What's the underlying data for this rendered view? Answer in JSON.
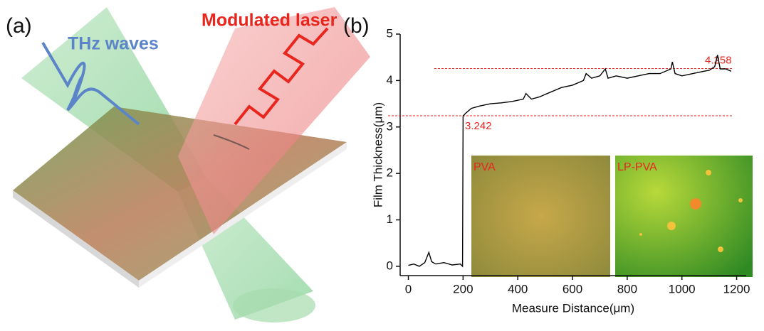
{
  "panel_a": {
    "label": "(a)",
    "thz_label": "THz waves",
    "laser_label": "Modulated laser"
  },
  "chart_data": {
    "type": "line",
    "panel_label": "(b)",
    "x_label": "Measure Distance(μm)",
    "y_label": "Film Thickness(μm)",
    "xlim": [
      -30,
      1235
    ],
    "xticks": [
      0,
      200,
      400,
      600,
      800,
      1000,
      1200
    ],
    "ylim": [
      -0.2,
      5
    ],
    "yticks": [
      0,
      1,
      2,
      3,
      4,
      5
    ],
    "series": [
      {
        "color": "#000000",
        "x": [
          0,
          20,
          40,
          60,
          75,
          85,
          100,
          130,
          160,
          190,
          198,
          200,
          210,
          230,
          260,
          300,
          340,
          380,
          420,
          430,
          450,
          480,
          520,
          560,
          600,
          640,
          650,
          670,
          700,
          720,
          730,
          760,
          800,
          840,
          880,
          920,
          960,
          965,
          975,
          1000,
          1040,
          1080,
          1100,
          1120,
          1130,
          1140,
          1160,
          1180
        ],
        "values": [
          0.02,
          0.05,
          0.0,
          0.08,
          0.3,
          0.1,
          0.05,
          0.08,
          0.03,
          0.05,
          0.0,
          3.24,
          3.3,
          3.4,
          3.45,
          3.5,
          3.52,
          3.55,
          3.6,
          3.72,
          3.6,
          3.65,
          3.75,
          3.85,
          3.9,
          4.0,
          4.15,
          4.05,
          4.1,
          4.25,
          4.05,
          4.1,
          4.05,
          4.1,
          4.15,
          4.15,
          4.25,
          4.4,
          4.15,
          4.1,
          4.15,
          4.2,
          4.22,
          4.3,
          4.55,
          4.25,
          4.25,
          4.2
        ]
      }
    ],
    "reference_lines": [
      {
        "value": 3.242,
        "color": "#e8261e"
      },
      {
        "value": 4.258,
        "color": "#e8261e"
      }
    ],
    "insets": [
      {
        "label": "PVA"
      },
      {
        "label": "LP-PVA"
      }
    ]
  }
}
